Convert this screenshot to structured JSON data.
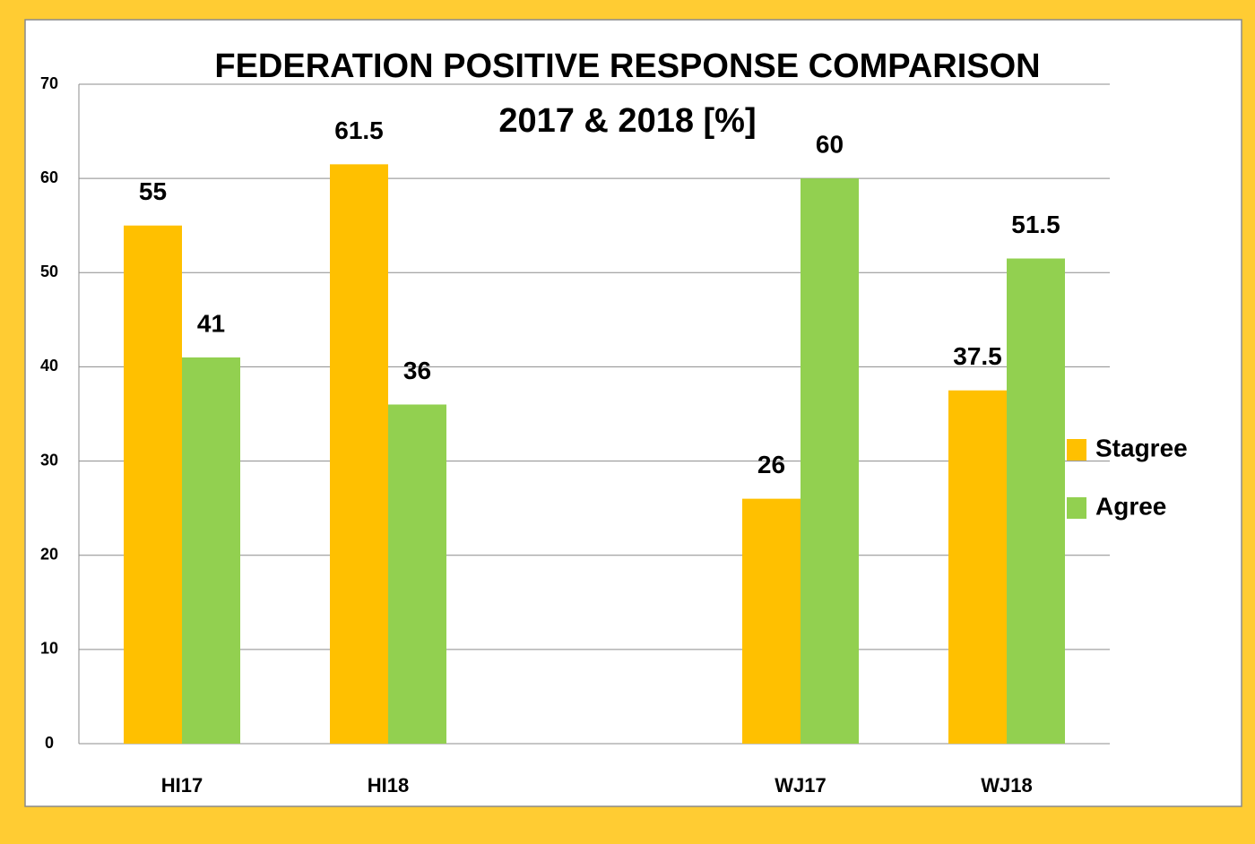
{
  "chart_data": {
    "type": "bar",
    "title": "FEDERATION POSITIVE RESPONSE COMPARISON",
    "subtitle": "2017 & 2018 [%]",
    "categories": [
      "HI17",
      "HI18",
      null,
      "WJ17",
      "WJ18"
    ],
    "series": [
      {
        "name": "Stagree",
        "color": "#ffc000",
        "values": [
          55,
          61.5,
          null,
          26,
          37.5
        ]
      },
      {
        "name": "Agree",
        "color": "#92d050",
        "values": [
          41,
          36,
          null,
          60,
          51.5
        ]
      }
    ],
    "ylim": [
      0,
      70
    ],
    "yticks": [
      0,
      10,
      20,
      30,
      40,
      50,
      60,
      70
    ],
    "grid": true,
    "legend": "right"
  }
}
